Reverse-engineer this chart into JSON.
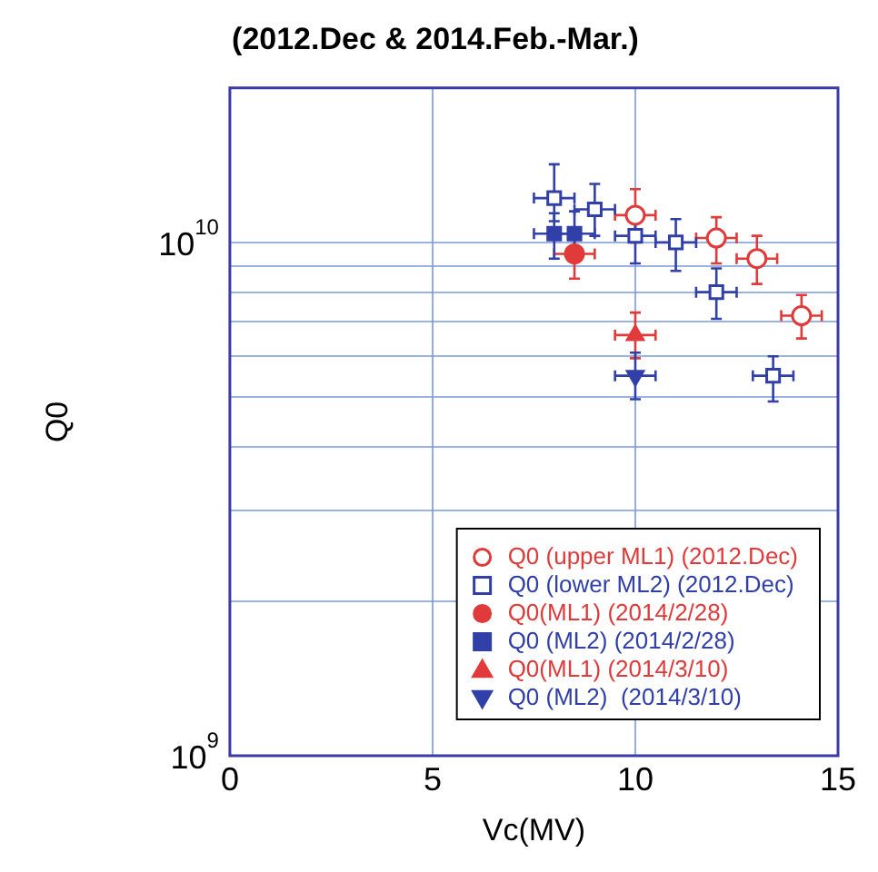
{
  "chart_data": {
    "type": "scatter",
    "title": "(2012.Dec & 2014.Feb.-Mar.)",
    "xlabel": "Vc(MV)",
    "ylabel": "Q0",
    "log": "y",
    "grid": true,
    "legend": "bottom right",
    "xlim": [
      0,
      15
    ],
    "xticks": [
      0,
      5,
      10,
      15
    ],
    "ylim": [
      1000000000.0,
      20000000000.0
    ],
    "yticks": [
      {
        "value": 1000000000.0,
        "label": "10$^{9}$"
      },
      {
        "value": 2000000000.0,
        "label": null
      },
      {
        "value": 3000000000.0,
        "label": null
      },
      {
        "value": 4000000000.0,
        "label": null
      },
      {
        "value": 5000000000.0,
        "label": null
      },
      {
        "value": 6000000000.0,
        "label": null
      },
      {
        "value": 7000000000.0,
        "label": null
      },
      {
        "value": 8000000000.0,
        "label": null
      },
      {
        "value": 9000000000.0,
        "label": null
      },
      {
        "value": 10000000000.0,
        "label": "10$^{10}$"
      }
    ],
    "series": [
      {
        "name": "Q0 (upper ML1) (2012.Dec)",
        "color": "#e03a3a",
        "marker": "circle-open",
        "x": [
          10,
          12,
          13,
          14.1
        ],
        "values": [
          11300000000.0,
          10200000000.0,
          9300000000.0,
          7200000000.0
        ],
        "errors": [
          [
            10000000000.0,
            12700000000.0
          ],
          [
            9100000000.0,
            11200000000.0
          ],
          [
            8300000000.0,
            10300000000.0
          ],
          [
            6500000000.0,
            7900000000.0
          ]
        ],
        "xerrors": [
          0.5,
          0.5,
          0.5,
          0.5
        ]
      },
      {
        "name": "Q0 (lower ML2) (2012.Dec)",
        "color": "#3040a8",
        "marker": "square-open",
        "x": [
          8,
          9,
          10,
          11,
          12,
          13.4
        ],
        "values": [
          12200000000.0,
          11600000000.0,
          10300000000.0,
          10000000000.0,
          8000000000.0,
          5500000000.0
        ],
        "errors": [
          [
            11000000000.0,
            14200000000.0
          ],
          [
            10300000000.0,
            13000000000.0
          ],
          [
            9100000000.0,
            11500000000.0
          ],
          [
            8800000000.0,
            11100000000.0
          ],
          [
            7100000000.0,
            8900000000.0
          ],
          [
            4900000000.0,
            6000000000.0
          ]
        ],
        "xerrors": [
          0.5,
          0.5,
          0.5,
          0.5,
          0.5,
          0.5
        ]
      },
      {
        "name": "Q0(ML1) (2014/2/28)",
        "color": "#e03a3a",
        "marker": "circle",
        "x": [
          8.5
        ],
        "values": [
          9500000000.0
        ],
        "errors": [
          [
            8500000000.0,
            10500000000.0
          ]
        ],
        "xerrors": [
          0.5
        ]
      },
      {
        "name": "Q0 (ML2) (2014/2/28)",
        "color": "#3040a8",
        "marker": "square",
        "x": [
          8,
          8.5
        ],
        "values": [
          10400000000.0,
          10400000000.0
        ],
        "errors": [
          [
            9300000000.0,
            11400000000.0
          ],
          [
            9300000000.0,
            11500000000.0
          ]
        ],
        "xerrors": [
          0.5,
          0.5
        ]
      },
      {
        "name": "Q0(ML1) (2014/3/10)",
        "color": "#e03a3a",
        "marker": "triangle",
        "x": [
          10
        ],
        "values": [
          6600000000.0
        ],
        "errors": [
          [
            5950000000.0,
            7300000000.0
          ]
        ],
        "xerrors": [
          0.5
        ]
      },
      {
        "name": "Q0 (ML2)  (2014/3/10)",
        "color": "#3040a8",
        "marker": "triangle-down",
        "x": [
          10
        ],
        "values": [
          5500000000.0
        ],
        "errors": [
          [
            4950000000.0,
            6100000000.0
          ]
        ],
        "xerrors": [
          0.5
        ]
      }
    ]
  }
}
